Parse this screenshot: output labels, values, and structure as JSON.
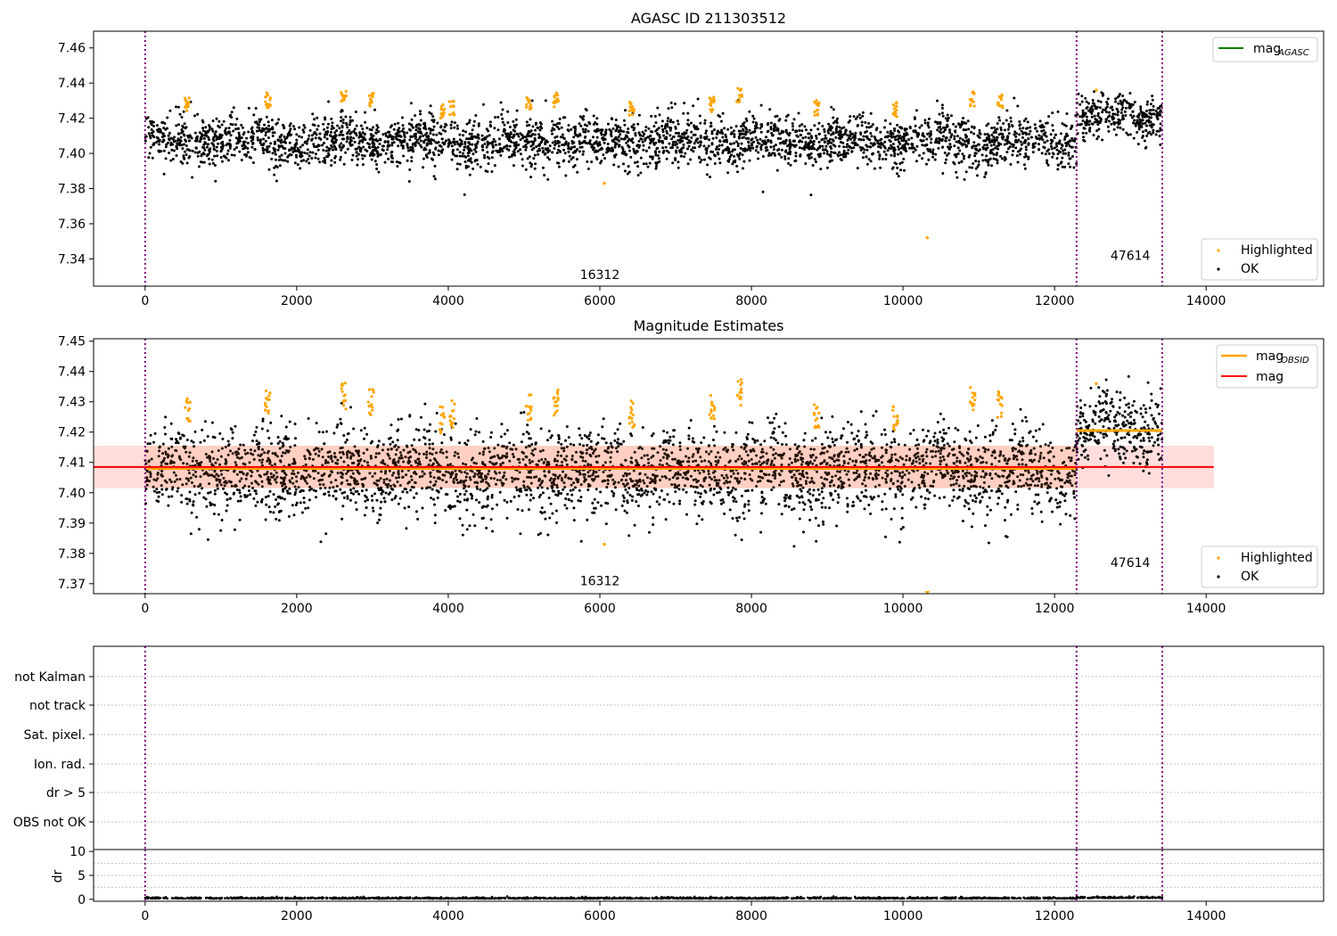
{
  "chart_data": [
    {
      "type": "scatter",
      "title": "AGASC ID 211303512",
      "xlim": [
        -680,
        15550
      ],
      "ylim": [
        7.3245,
        7.4695
      ],
      "x_ticks": [
        0,
        2000,
        4000,
        6000,
        8000,
        10000,
        12000,
        14000
      ],
      "x_tick_labels": [
        "0",
        "2000",
        "4000",
        "6000",
        "8000",
        "10000",
        "12000",
        "14000"
      ],
      "y_ticks": [
        7.34,
        7.36,
        7.38,
        7.4,
        7.42,
        7.44,
        7.46
      ],
      "y_tick_labels": [
        "7.34",
        "7.36",
        "7.38",
        "7.40",
        "7.42",
        "7.44",
        "7.46"
      ],
      "obs_boundaries": [
        0,
        12290,
        13420
      ],
      "obs_labels": [
        {
          "text": "16312",
          "x": 6000,
          "y": 7.3285
        },
        {
          "text": "47614",
          "x": 13000,
          "y": 7.3395
        }
      ],
      "segments": [
        {
          "obsid": "16312",
          "x_range": [
            0,
            12290
          ],
          "mean": 7.407,
          "spread": 0.007
        },
        {
          "obsid": "47614",
          "x_range": [
            12290,
            13420
          ],
          "mean": 7.421,
          "spread": 0.006
        }
      ],
      "highlight_clusters": [
        {
          "x": 560,
          "mag": 7.428
        },
        {
          "x": 1620,
          "mag": 7.43
        },
        {
          "x": 2620,
          "mag": 7.432
        },
        {
          "x": 2980,
          "mag": 7.43
        },
        {
          "x": 3920,
          "mag": 7.424
        },
        {
          "x": 4050,
          "mag": 7.426
        },
        {
          "x": 5060,
          "mag": 7.428
        },
        {
          "x": 5420,
          "mag": 7.43
        },
        {
          "x": 6420,
          "mag": 7.426
        },
        {
          "x": 7480,
          "mag": 7.428
        },
        {
          "x": 7840,
          "mag": 7.433
        },
        {
          "x": 8860,
          "mag": 7.426
        },
        {
          "x": 9900,
          "mag": 7.425
        },
        {
          "x": 10920,
          "mag": 7.431
        },
        {
          "x": 11280,
          "mag": 7.429
        }
      ],
      "outliers": [
        {
          "x": 6060,
          "mag": 7.383
        },
        {
          "x": 10320,
          "mag": 7.352
        },
        {
          "x": 12550,
          "mag": 7.436
        }
      ],
      "legends": [
        {
          "position": "upper-right",
          "entries": [
            {
              "label": "mag",
              "subscript": "AGASC",
              "color": "#008000",
              "marker": "line"
            }
          ]
        },
        {
          "position": "lower-right",
          "entries": [
            {
              "label": "Highlighted",
              "color": "#ffa500",
              "marker": "dot"
            },
            {
              "label": "OK",
              "color": "#000000",
              "marker": "dot"
            }
          ]
        }
      ]
    },
    {
      "type": "scatter",
      "title": "Magnitude Estimates",
      "xlim": [
        -680,
        15550
      ],
      "ylim": [
        7.3667,
        7.4508
      ],
      "x_ticks": [
        0,
        2000,
        4000,
        6000,
        8000,
        10000,
        12000,
        14000
      ],
      "x_tick_labels": [
        "0",
        "2000",
        "4000",
        "6000",
        "8000",
        "10000",
        "12000",
        "14000"
      ],
      "y_ticks": [
        7.37,
        7.38,
        7.39,
        7.4,
        7.41,
        7.42,
        7.43,
        7.44,
        7.45
      ],
      "y_tick_labels": [
        "7.37",
        "7.38",
        "7.39",
        "7.40",
        "7.41",
        "7.42",
        "7.43",
        "7.44",
        "7.45"
      ],
      "obs_boundaries": [
        0,
        12290,
        13420
      ],
      "obs_labels": [
        {
          "text": "16312",
          "x": 6000,
          "y": 7.3695
        },
        {
          "text": "47614",
          "x": 13000,
          "y": 7.3755
        }
      ],
      "mag_line": {
        "value": 7.4085,
        "color": "#ff0000",
        "x_range": [
          -680,
          14100
        ]
      },
      "mag_band": {
        "low": 7.4015,
        "high": 7.4155,
        "x_range": [
          -680,
          14100
        ],
        "color": "#ffdddd"
      },
      "mag_obsid_lines": [
        {
          "obsid": "16312",
          "value": 7.408,
          "x_range": [
            0,
            12290
          ],
          "color": "#ffa500"
        },
        {
          "obsid": "47614",
          "value": 7.4205,
          "x_range": [
            12290,
            13420
          ],
          "color": "#ffa500"
        }
      ],
      "outliers": [
        {
          "x": 6060,
          "mag": 7.383
        },
        {
          "x": 12550,
          "mag": 7.436
        }
      ],
      "legends": [
        {
          "position": "upper-right",
          "entries": [
            {
              "label": "mag",
              "subscript": "OBSID",
              "color": "#ffa500",
              "marker": "line"
            },
            {
              "label": "mag",
              "color": "#ff0000",
              "marker": "line"
            }
          ]
        },
        {
          "position": "lower-right",
          "entries": [
            {
              "label": "Highlighted",
              "color": "#ffa500",
              "marker": "dot"
            },
            {
              "label": "OK",
              "color": "#000000",
              "marker": "dot"
            }
          ]
        }
      ]
    },
    {
      "type": "scatter",
      "title": "",
      "xlim": [
        -680,
        15550
      ],
      "flag_labels": [
        "not Kalman",
        "not track",
        "Sat. pixel.",
        "Ion. rad.",
        "dr > 5",
        "OBS not OK"
      ],
      "obs_boundaries": [
        0,
        12290,
        13420
      ]
    },
    {
      "type": "scatter",
      "title": "",
      "xlim": [
        -680,
        15550
      ],
      "ylim": [
        -0.4,
        10.4
      ],
      "ylabel": "dr",
      "x_ticks": [
        0,
        2000,
        4000,
        6000,
        8000,
        10000,
        12000,
        14000
      ],
      "x_tick_labels": [
        "0",
        "2000",
        "4000",
        "6000",
        "8000",
        "10000",
        "12000",
        "14000"
      ],
      "y_ticks": [
        0,
        5,
        10
      ],
      "y_tick_labels": [
        "0",
        "5",
        "10"
      ],
      "obs_boundaries": [
        0,
        12290,
        13420
      ],
      "dr_mean": 0.15
    }
  ]
}
